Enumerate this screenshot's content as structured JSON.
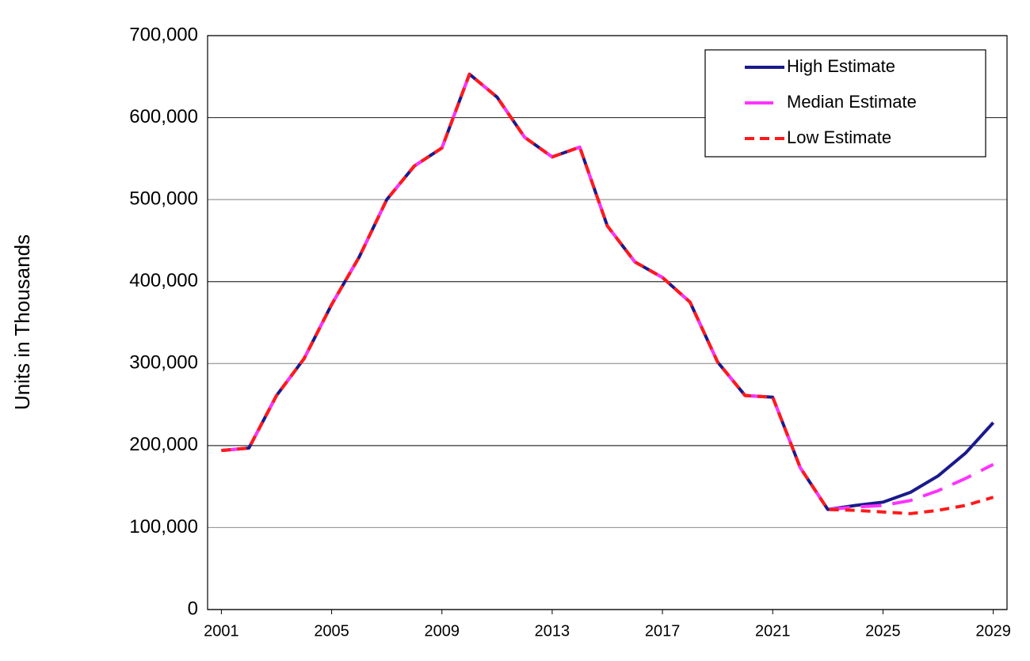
{
  "chart_data": {
    "type": "line",
    "ylabel": "Units in Thousands",
    "x": [
      2001,
      2002,
      2003,
      2004,
      2005,
      2006,
      2007,
      2008,
      2009,
      2010,
      2011,
      2012,
      2013,
      2014,
      2015,
      2016,
      2017,
      2018,
      2019,
      2020,
      2021,
      2022,
      2023,
      2024,
      2025,
      2026,
      2027,
      2028,
      2029
    ],
    "series": [
      {
        "name": "High Estimate",
        "color": "#1a1a8c",
        "dash": "solid",
        "values": [
          194000,
          197000,
          261000,
          306000,
          372000,
          430000,
          500000,
          541000,
          563000,
          653000,
          625000,
          576000,
          552000,
          564000,
          468000,
          424000,
          405000,
          375000,
          302000,
          261000,
          259000,
          173000,
          122000,
          127000,
          131000,
          143000,
          163000,
          191000,
          228000
        ]
      },
      {
        "name": "Median Estimate",
        "color": "#ff33ff",
        "dash": "long",
        "values": [
          194000,
          197000,
          261000,
          306000,
          372000,
          430000,
          500000,
          541000,
          563000,
          653000,
          625000,
          576000,
          552000,
          564000,
          468000,
          424000,
          405000,
          375000,
          302000,
          261000,
          259000,
          173000,
          122000,
          125000,
          127000,
          133000,
          145000,
          160000,
          177000
        ]
      },
      {
        "name": "Low Estimate",
        "color": "#ff1a1a",
        "dash": "short",
        "values": [
          194000,
          197000,
          261000,
          306000,
          372000,
          430000,
          500000,
          541000,
          563000,
          653000,
          625000,
          576000,
          552000,
          564000,
          468000,
          424000,
          405000,
          375000,
          302000,
          261000,
          259000,
          173000,
          122000,
          121000,
          119000,
          117000,
          121000,
          127000,
          137000
        ]
      }
    ],
    "xlim": [
      2000.5,
      2029.5
    ],
    "xticks": [
      2001,
      2005,
      2009,
      2013,
      2017,
      2021,
      2025,
      2029
    ],
    "ylim": [
      0,
      700000
    ],
    "yticks": [
      0,
      {
        "value": 100000,
        "label": "100,000"
      },
      {
        "value": 200000,
        "label": "200,000"
      },
      {
        "value": 300000,
        "label": "300,000"
      },
      {
        "value": 400000,
        "label": "400,000"
      },
      {
        "value": 500000,
        "label": "500,000"
      },
      {
        "value": 600000,
        "label": "600,000"
      },
      {
        "value": 700000,
        "label": "700,000"
      }
    ],
    "grid": true,
    "legend": "top-right"
  }
}
